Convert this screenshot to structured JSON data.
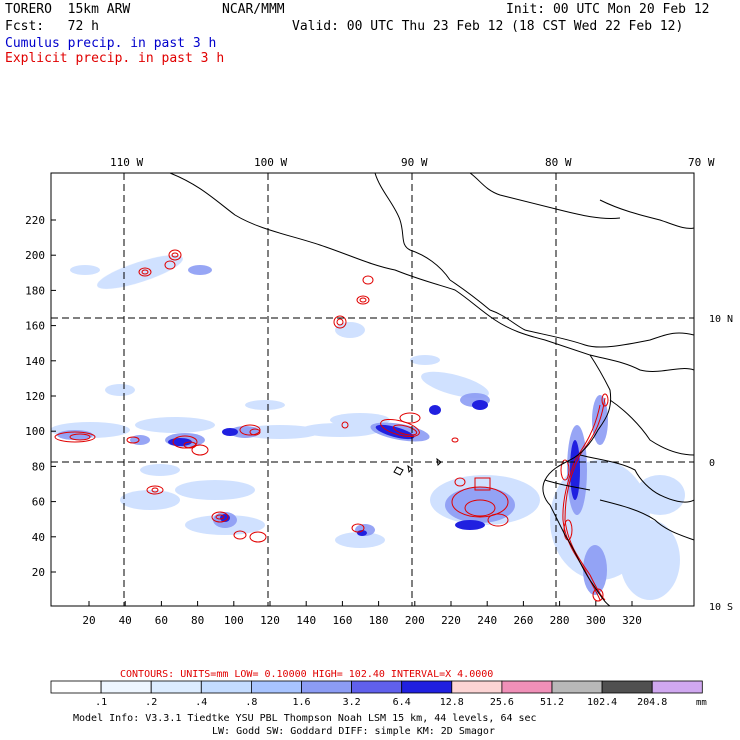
{
  "header": {
    "model": "TORERO  15km ARW",
    "org": "NCAR/MMM",
    "init": "Init: 00 UTC Mon 20 Feb 12",
    "fcst": "Fcst:   72 h",
    "valid": "Valid: 00 UTC Thu 23 Feb 12 (18 CST Wed 22 Feb 12)",
    "cumulus_label": "Cumulus precip. in past 3 h",
    "explicit_label": "Explicit precip. in past 3 h"
  },
  "map": {
    "lon_labels": [
      "110 W",
      "100 W",
      "90 W",
      "80 W",
      "70 W"
    ],
    "lat_labels": [
      "10 N",
      "0",
      "10 S"
    ],
    "x_ticks": [
      "20",
      "40",
      "60",
      "80",
      "100",
      "120",
      "140",
      "160",
      "180",
      "200",
      "220",
      "240",
      "260",
      "280",
      "300",
      "320"
    ],
    "y_ticks": [
      "20",
      "40",
      "60",
      "80",
      "100",
      "120",
      "140",
      "160",
      "180",
      "200",
      "220"
    ],
    "grid_style": "dashed",
    "cumulus_color": "#2020e0",
    "explicit_color": "#e00000"
  },
  "footer": {
    "contours_line": "CONTOURS:  UNITS=mm  LOW= 0.10000      HIGH=  102.40      INTERVAL=X  4.0000",
    "colorbar_values": [
      ".1",
      ".2",
      ".4",
      ".8",
      "1.6",
      "3.2",
      "6.4",
      "12.8",
      "25.6",
      "51.2",
      "102.4",
      "204.8"
    ],
    "colorbar_colors": [
      "#ffffff",
      "#eef6ff",
      "#dcecff",
      "#c4dcff",
      "#a8c4ff",
      "#8c9cf4",
      "#6060ec",
      "#2020e0",
      "#fcd4d4",
      "#f090b8",
      "#b8b8b8",
      "#505050",
      "#d0a8f0"
    ],
    "units": "mm",
    "info_line1": "Model Info: V3.3.1    Tiedtke YSU PBL  Thompson     Noah LSM  15 km,   44 levels,   64 sec",
    "info_line2": "LW: Godd SW: Goddard DIFF: simple KM: 2D Smagor"
  }
}
